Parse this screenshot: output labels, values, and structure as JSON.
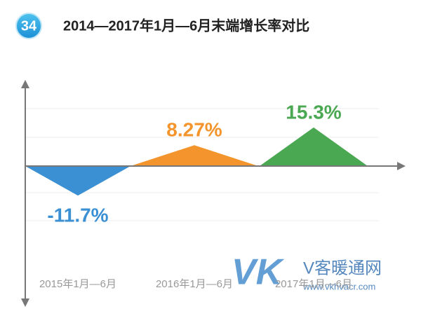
{
  "badge": "34",
  "chart_data": {
    "type": "triangle",
    "title": "2014—2017年1月—6月末端增长率对比",
    "categories": [
      "2015年1月—6月",
      "2016年1月—6月",
      "2017年1月—6月"
    ],
    "values": [
      -11.7,
      8.27,
      15.3
    ],
    "value_labels": [
      "-11.7%",
      "8.27%",
      "15.3%"
    ],
    "colors": [
      "#3b8fd3",
      "#f3952c",
      "#4ba852"
    ],
    "ylim": [
      -30,
      30
    ]
  },
  "watermark": {
    "logo": "VK",
    "name": "V客暖通网",
    "url": "www.vkhvacr.com"
  }
}
